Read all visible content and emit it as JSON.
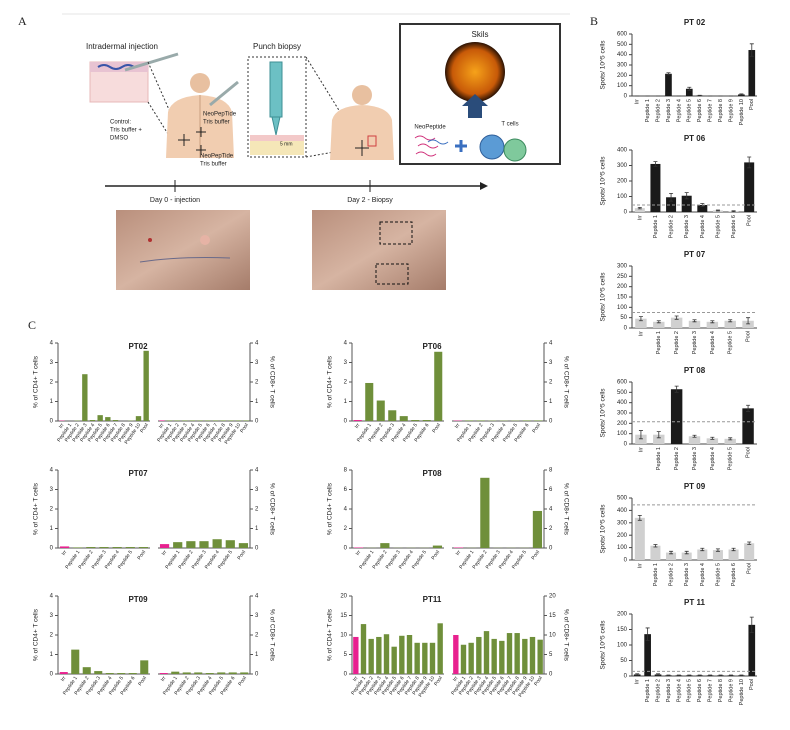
{
  "panel_labels": {
    "a": "A",
    "b": "B",
    "c": "C"
  },
  "panel_a": {
    "injection_title": "Intradermal injection",
    "biopsy_title": "Punch biopsy",
    "control_label": [
      "Control:",
      "Tris buffer +",
      "DMSO"
    ],
    "neopeptide_upper": [
      "NeoPepTide",
      "Tris buffer"
    ],
    "neopeptide_lower": [
      "NeoPepTide",
      "Tris buffer"
    ],
    "depth_label": "5 mm",
    "skils_title": "Skils",
    "neopeptide_label": "NeoPeptide",
    "t_cells_label": "T cells",
    "day0_label": "Day 0 - injection",
    "day2_label": "Day 2 - Biopsy"
  },
  "chart_data": [
    {
      "type": "bar",
      "title": "PT 02",
      "y_label": "Spots/ 10^5 cells",
      "categories": [
        "Irr",
        "Peptide 1",
        "Peptide 2",
        "Peptide 3",
        "Peptide 4",
        "Peptide 5",
        "Peptide 6",
        "Peptide 7",
        "Peptide 8",
        "Peptide 9",
        "Peptide 10",
        "Pool"
      ],
      "values": [
        0,
        0,
        0,
        215,
        0,
        70,
        5,
        0,
        0,
        0,
        15,
        445
      ],
      "errors": [
        0,
        0,
        0,
        10,
        0,
        15,
        2,
        0,
        0,
        0,
        5,
        60
      ],
      "colors": [
        "#1a1a1a",
        "#1a1a1a",
        "#1a1a1a",
        "#1a1a1a",
        "#1a1a1a",
        "#1a1a1a",
        "#1a1a1a",
        "#1a1a1a",
        "#1a1a1a",
        "#1a1a1a",
        "#1a1a1a",
        "#1a1a1a"
      ],
      "ylim": [
        0,
        600
      ],
      "yticks": [
        0,
        100,
        200,
        300,
        400,
        500,
        600
      ]
    },
    {
      "type": "bar",
      "title": "PT 06",
      "y_label": "Spots/ 10^5 cells",
      "categories": [
        "Irr",
        "Peptide 1",
        "Peptide 2",
        "Peptide 3",
        "Peptide 4",
        "Peptide 5",
        "Peptide 6",
        "Pool"
      ],
      "values": [
        25,
        310,
        95,
        105,
        45,
        10,
        5,
        320
      ],
      "errors": [
        5,
        15,
        25,
        20,
        10,
        3,
        3,
        35
      ],
      "colors": [
        "#d0d0d0",
        "#1a1a1a",
        "#1a1a1a",
        "#1a1a1a",
        "#1a1a1a",
        "#d0d0d0",
        "#d0d0d0",
        "#1a1a1a"
      ],
      "threshold": 45,
      "ylim": [
        0,
        400
      ],
      "yticks": [
        0,
        100,
        200,
        300,
        400
      ]
    },
    {
      "type": "bar",
      "title": "PT 07",
      "y_label": "Spots/ 10^5 cells",
      "categories": [
        "Irr",
        "Peptide 1",
        "Peptide 2",
        "Peptide 3",
        "Peptide 4",
        "Peptide 5",
        "Pool"
      ],
      "values": [
        45,
        30,
        50,
        35,
        30,
        35,
        35
      ],
      "errors": [
        10,
        5,
        8,
        5,
        5,
        5,
        15
      ],
      "colors": [
        "#d0d0d0",
        "#d0d0d0",
        "#d0d0d0",
        "#d0d0d0",
        "#d0d0d0",
        "#d0d0d0",
        "#d0d0d0"
      ],
      "threshold": 75,
      "ylim": [
        0,
        300
      ],
      "yticks": [
        0,
        50,
        100,
        150,
        200,
        250,
        300
      ]
    },
    {
      "type": "bar",
      "title": "PT 08",
      "y_label": "Spots/ 10^5 cells",
      "categories": [
        "Irr",
        "Peptide 1",
        "Peptide 2",
        "Peptide 3",
        "Peptide 4",
        "Peptide 5",
        "Pool"
      ],
      "values": [
        90,
        90,
        530,
        75,
        55,
        50,
        345
      ],
      "errors": [
        40,
        30,
        30,
        10,
        10,
        10,
        30
      ],
      "colors": [
        "#d0d0d0",
        "#d0d0d0",
        "#1a1a1a",
        "#d0d0d0",
        "#d0d0d0",
        "#d0d0d0",
        "#1a1a1a"
      ],
      "threshold": 215,
      "ylim": [
        0,
        600
      ],
      "yticks": [
        0,
        100,
        200,
        300,
        400,
        500,
        600
      ]
    },
    {
      "type": "bar",
      "title": "PT 09",
      "y_label": "Spots/ 10^5 cells",
      "categories": [
        "Irr",
        "Peptide 1",
        "Peptide 2",
        "Peptide 3",
        "Peptide 4",
        "Peptide 5",
        "Peptide 6",
        "Pool"
      ],
      "values": [
        340,
        115,
        60,
        60,
        85,
        80,
        85,
        135
      ],
      "errors": [
        20,
        10,
        10,
        10,
        10,
        10,
        10,
        10
      ],
      "colors": [
        "#d0d0d0",
        "#d0d0d0",
        "#d0d0d0",
        "#d0d0d0",
        "#d0d0d0",
        "#d0d0d0",
        "#d0d0d0",
        "#d0d0d0"
      ],
      "threshold": 445,
      "ylim": [
        0,
        500
      ],
      "yticks": [
        0,
        100,
        200,
        300,
        400,
        500
      ]
    },
    {
      "type": "bar",
      "title": "PT 11",
      "y_label": "Spots/ 10^5 cells",
      "categories": [
        "Irr",
        "Peptide 1",
        "Peptide 2",
        "Peptide 3",
        "Peptide 4",
        "Peptide 5",
        "Peptide 6",
        "Peptide 7",
        "Peptide 8",
        "Peptide 9",
        "Peptide 10",
        "Pool"
      ],
      "values": [
        5,
        135,
        5,
        2,
        2,
        2,
        2,
        2,
        2,
        2,
        2,
        165
      ],
      "errors": [
        2,
        20,
        2,
        1,
        1,
        1,
        1,
        1,
        1,
        1,
        1,
        25
      ],
      "colors": [
        "#1a1a1a",
        "#1a1a1a",
        "#1a1a1a",
        "#1a1a1a",
        "#1a1a1a",
        "#1a1a1a",
        "#1a1a1a",
        "#1a1a1a",
        "#1a1a1a",
        "#1a1a1a",
        "#1a1a1a",
        "#1a1a1a"
      ],
      "threshold": 15,
      "ylim": [
        0,
        200
      ],
      "yticks": [
        0,
        50,
        100,
        150,
        200
      ]
    },
    {
      "type": "bar",
      "title": "PT02",
      "categories": [
        "Irr",
        "Peptide 1",
        "Peptide 2",
        "Peptide 3",
        "Peptide 4",
        "Peptide 5",
        "Peptide 6",
        "Peptide 7",
        "Peptide 8",
        "Peptide 9",
        "Peptide 10",
        "Pool"
      ],
      "colors": [
        "#e8218f",
        "#6f8f3a",
        "#6f8f3a",
        "#6f8f3a",
        "#6f8f3a",
        "#6f8f3a",
        "#6f8f3a",
        "#6f8f3a",
        "#6f8f3a",
        "#6f8f3a",
        "#6f8f3a",
        "#6f8f3a"
      ],
      "ylim": [
        0,
        4
      ],
      "yticks": [
        0,
        1,
        2,
        3,
        4
      ],
      "subplots": [
        {
          "y_label": "% of CD4+ T cells",
          "values": [
            0.02,
            0,
            0.02,
            2.4,
            0.05,
            0.3,
            0.2,
            0.05,
            0,
            0.02,
            0.25,
            3.6
          ]
        },
        {
          "y_label": "% of CD8+ T cells",
          "values": [
            0.03,
            0.03,
            0.03,
            0.03,
            0.03,
            0.03,
            0.03,
            0.03,
            0.03,
            0.03,
            0.03,
            0.03
          ]
        }
      ]
    },
    {
      "type": "bar",
      "title": "PT06",
      "categories": [
        "Irr",
        "Peptide 1",
        "Peptide 2",
        "Peptide 3",
        "Peptide 4",
        "Peptide 5",
        "Peptide 6",
        "Pool"
      ],
      "colors": [
        "#e8218f",
        "#6f8f3a",
        "#6f8f3a",
        "#6f8f3a",
        "#6f8f3a",
        "#6f8f3a",
        "#6f8f3a",
        "#6f8f3a"
      ],
      "ylim": [
        0,
        4
      ],
      "yticks": [
        0,
        1,
        2,
        3,
        4
      ],
      "subplots": [
        {
          "y_label": "% of CD4+ T cells",
          "values": [
            0.05,
            1.95,
            1.05,
            0.55,
            0.25,
            0.05,
            0.05,
            3.55
          ]
        },
        {
          "y_label": "% of CD8+ T cells",
          "values": [
            0.02,
            0.03,
            0.03,
            0.02,
            0.02,
            0.02,
            0.03,
            0.03
          ]
        }
      ]
    },
    {
      "type": "bar",
      "title": "PT07",
      "categories": [
        "Irr",
        "Peptide 1",
        "Peptide 2",
        "Peptide 3",
        "Peptide 4",
        "Peptide 5",
        "Pool"
      ],
      "colors": [
        "#e8218f",
        "#6f8f3a",
        "#6f8f3a",
        "#6f8f3a",
        "#6f8f3a",
        "#6f8f3a",
        "#6f8f3a"
      ],
      "ylim": [
        0,
        4
      ],
      "yticks": [
        0,
        1,
        2,
        3,
        4
      ],
      "subplots": [
        {
          "y_label": "% of CD4+ T cells",
          "values": [
            0.08,
            0.03,
            0.05,
            0.05,
            0.05,
            0.05,
            0.05
          ]
        },
        {
          "y_label": "% of CD8+ T cells",
          "values": [
            0.2,
            0.3,
            0.35,
            0.35,
            0.45,
            0.4,
            0.25
          ]
        }
      ]
    },
    {
      "type": "bar",
      "title": "PT08",
      "categories": [
        "Irr",
        "Peptide 1",
        "Peptide 2",
        "Peptide 3",
        "Peptide 4",
        "Peptide 5",
        "Pool"
      ],
      "colors": [
        "#e8218f",
        "#6f8f3a",
        "#6f8f3a",
        "#6f8f3a",
        "#6f8f3a",
        "#6f8f3a",
        "#6f8f3a"
      ],
      "ylim": [
        0,
        8
      ],
      "yticks": [
        0,
        2,
        4,
        6,
        8
      ],
      "subplots": [
        {
          "y_label": "% of CD4+ T cells",
          "values": [
            0.05,
            0.02,
            0.5,
            0.02,
            0.02,
            0.02,
            0.25
          ]
        },
        {
          "y_label": "% of CD8+ T cells",
          "values": [
            0.05,
            0.02,
            7.2,
            0.02,
            0.02,
            0.02,
            3.8
          ]
        }
      ]
    },
    {
      "type": "bar",
      "title": "PT09",
      "categories": [
        "Irr",
        "Peptide 1",
        "Peptide 2",
        "Peptide 3",
        "Peptide 4",
        "Peptide 5",
        "Peptide 6",
        "Pool"
      ],
      "colors": [
        "#e8218f",
        "#6f8f3a",
        "#6f8f3a",
        "#6f8f3a",
        "#6f8f3a",
        "#6f8f3a",
        "#6f8f3a",
        "#6f8f3a"
      ],
      "ylim": [
        0,
        4
      ],
      "yticks": [
        0,
        1,
        2,
        3,
        4
      ],
      "subplots": [
        {
          "y_label": "% of CD4+ T cells",
          "values": [
            0.1,
            1.25,
            0.35,
            0.15,
            0.05,
            0.05,
            0.05,
            0.7
          ]
        },
        {
          "y_label": "% of CD8+ T cells",
          "values": [
            0.05,
            0.12,
            0.08,
            0.08,
            0.05,
            0.08,
            0.08,
            0.08
          ]
        }
      ]
    },
    {
      "type": "bar",
      "title": "PT11",
      "categories": [
        "Irr",
        "Peptide 1",
        "Peptide 2",
        "Peptide 3",
        "Peptide 4",
        "Peptide 5",
        "Peptide 6",
        "Peptide 7",
        "Peptide 8",
        "Peptide 9",
        "Peptide 10",
        "Pool"
      ],
      "colors": [
        "#e8218f",
        "#6f8f3a",
        "#6f8f3a",
        "#6f8f3a",
        "#6f8f3a",
        "#6f8f3a",
        "#6f8f3a",
        "#6f8f3a",
        "#6f8f3a",
        "#6f8f3a",
        "#6f8f3a",
        "#6f8f3a"
      ],
      "ylim": [
        0,
        20
      ],
      "yticks": [
        0,
        5,
        10,
        15,
        20
      ],
      "subplots": [
        {
          "y_label": "% of CD4+ T cells",
          "values": [
            9.5,
            12.8,
            9,
            9.5,
            10.2,
            7,
            9.8,
            10,
            8,
            8,
            8,
            13
          ]
        },
        {
          "y_label": "% of CD8+ T cells",
          "values": [
            10,
            7.5,
            8,
            9.5,
            11,
            9,
            8.5,
            10.5,
            10.5,
            9,
            9.5,
            8.8
          ]
        }
      ]
    }
  ]
}
